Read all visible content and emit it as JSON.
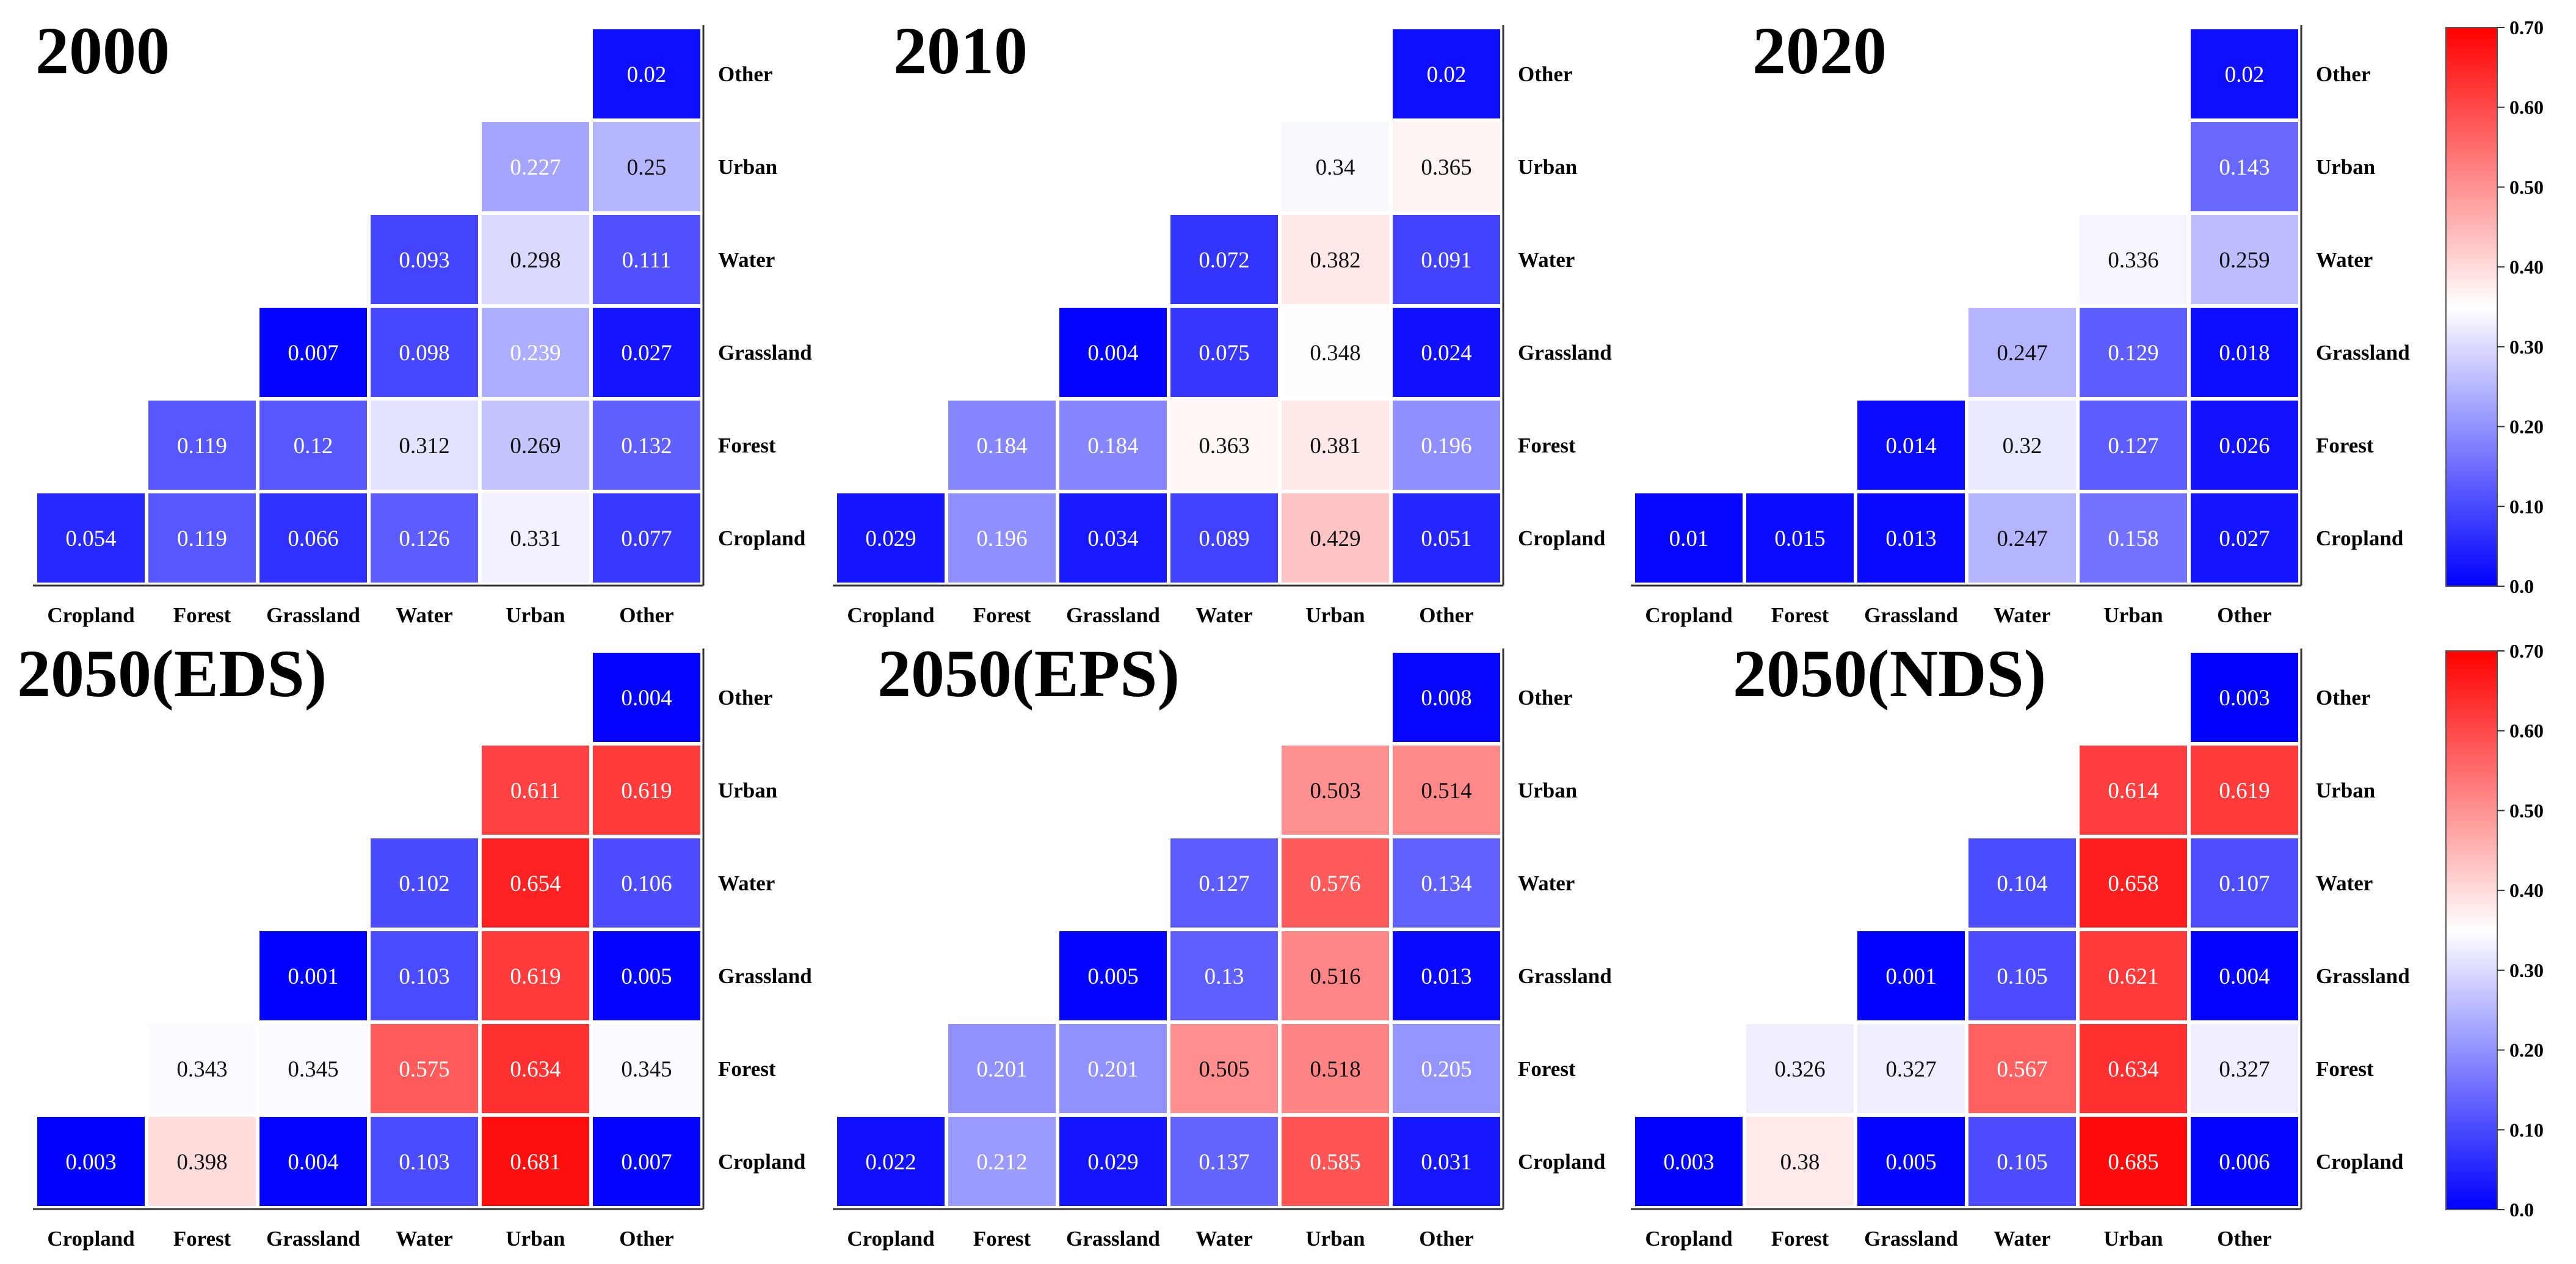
{
  "colorscale": {
    "min": 0.0,
    "max": 0.7,
    "low_color": "#0000ff",
    "mid_color": "#ffffff",
    "mid_value": 0.35,
    "high_color": "#ff0000",
    "ticks": [
      "0.0",
      "0.10",
      "0.20",
      "0.30",
      "0.40",
      "0.50",
      "0.60",
      "0.70"
    ]
  },
  "chart_data": [
    {
      "type": "heatmap",
      "title": "2000",
      "x_categories": [
        "Cropland",
        "Forest",
        "Grassland",
        "Water",
        "Urban",
        "Other"
      ],
      "y_categories": [
        "Other",
        "Urban",
        "Water",
        "Grassland",
        "Forest",
        "Cropland"
      ],
      "rows": [
        [
          "",
          "",
          "",
          "",
          "",
          "0.02"
        ],
        [
          "",
          "",
          "",
          "",
          "0.227",
          "0.25"
        ],
        [
          "",
          "",
          "",
          "0.093",
          "0.298",
          "0.111"
        ],
        [
          "",
          "",
          "0.007",
          "0.098",
          "0.239",
          "0.027"
        ],
        [
          "",
          "0.119",
          "0.12",
          "0.312",
          "0.269",
          "0.132"
        ],
        [
          "0.054",
          "0.119",
          "0.066",
          "0.126",
          "0.331",
          "0.077"
        ]
      ]
    },
    {
      "type": "heatmap",
      "title": "2010",
      "x_categories": [
        "Cropland",
        "Forest",
        "Grassland",
        "Water",
        "Urban",
        "Other"
      ],
      "y_categories": [
        "Other",
        "Urban",
        "Water",
        "Grassland",
        "Forest",
        "Cropland"
      ],
      "rows": [
        [
          "",
          "",
          "",
          "",
          "",
          "0.02"
        ],
        [
          "",
          "",
          "",
          "",
          "0.34",
          "0.365"
        ],
        [
          "",
          "",
          "",
          "0.072",
          "0.382",
          "0.091"
        ],
        [
          "",
          "",
          "0.004",
          "0.075",
          "0.348",
          "0.024"
        ],
        [
          "",
          "0.184",
          "0.184",
          "0.363",
          "0.381",
          "0.196"
        ],
        [
          "0.029",
          "0.196",
          "0.034",
          "0.089",
          "0.429",
          "0.051"
        ]
      ]
    },
    {
      "type": "heatmap",
      "title": "2020",
      "x_categories": [
        "Cropland",
        "Forest",
        "Grassland",
        "Water",
        "Urban",
        "Other"
      ],
      "y_categories": [
        "Other",
        "Urban",
        "Water",
        "Grassland",
        "Forest",
        "Cropland"
      ],
      "rows": [
        [
          "",
          "",
          "",
          "",
          "",
          "0.02"
        ],
        [
          "",
          "",
          "",
          "",
          "",
          "0.143"
        ],
        [
          "",
          "",
          "",
          "",
          "0.336",
          "0.259"
        ],
        [
          "",
          "",
          "",
          "0.247",
          "0.129",
          "0.018"
        ],
        [
          "",
          "",
          "0.014",
          "0.32",
          "0.127",
          "0.026"
        ],
        [
          "0.01",
          "0.015",
          "0.013",
          "0.247",
          "0.158",
          "0.027"
        ]
      ]
    },
    {
      "type": "heatmap",
      "title": "2050(EDS)",
      "x_categories": [
        "Cropland",
        "Forest",
        "Grassland",
        "Water",
        "Urban",
        "Other"
      ],
      "y_categories": [
        "Other",
        "Urban",
        "Water",
        "Grassland",
        "Forest",
        "Cropland"
      ],
      "rows": [
        [
          "",
          "",
          "",
          "",
          "",
          "0.004"
        ],
        [
          "",
          "",
          "",
          "",
          "0.611",
          "0.619"
        ],
        [
          "",
          "",
          "",
          "0.102",
          "0.654",
          "0.106"
        ],
        [
          "",
          "",
          "0.001",
          "0.103",
          "0.619",
          "0.005"
        ],
        [
          "",
          "0.343",
          "0.345",
          "0.575",
          "0.634",
          "0.345"
        ],
        [
          "0.003",
          "0.398",
          "0.004",
          "0.103",
          "0.681",
          "0.007"
        ]
      ]
    },
    {
      "type": "heatmap",
      "title": "2050(EPS)",
      "x_categories": [
        "Cropland",
        "Forest",
        "Grassland",
        "Water",
        "Urban",
        "Other"
      ],
      "y_categories": [
        "Other",
        "Urban",
        "Water",
        "Grassland",
        "Forest",
        "Cropland"
      ],
      "rows": [
        [
          "",
          "",
          "",
          "",
          "",
          "0.008"
        ],
        [
          "",
          "",
          "",
          "",
          "0.503",
          "0.514"
        ],
        [
          "",
          "",
          "",
          "0.127",
          "0.576",
          "0.134"
        ],
        [
          "",
          "",
          "0.005",
          "0.13",
          "0.516",
          "0.013"
        ],
        [
          "",
          "0.201",
          "0.201",
          "0.505",
          "0.518",
          "0.205"
        ],
        [
          "0.022",
          "0.212",
          "0.029",
          "0.137",
          "0.585",
          "0.031"
        ]
      ]
    },
    {
      "type": "heatmap",
      "title": "2050(NDS)",
      "x_categories": [
        "Cropland",
        "Forest",
        "Grassland",
        "Water",
        "Urban",
        "Other"
      ],
      "y_categories": [
        "Other",
        "Urban",
        "Water",
        "Grassland",
        "Forest",
        "Cropland"
      ],
      "rows": [
        [
          "",
          "",
          "",
          "",
          "",
          "0.003"
        ],
        [
          "",
          "",
          "",
          "",
          "0.614",
          "0.619"
        ],
        [
          "",
          "",
          "",
          "0.104",
          "0.658",
          "0.107"
        ],
        [
          "",
          "",
          "0.001",
          "0.105",
          "0.621",
          "0.004"
        ],
        [
          "",
          "0.326",
          "0.327",
          "0.567",
          "0.634",
          "0.327"
        ],
        [
          "0.003",
          "0.38",
          "0.005",
          "0.105",
          "0.685",
          "0.006"
        ]
      ]
    }
  ]
}
